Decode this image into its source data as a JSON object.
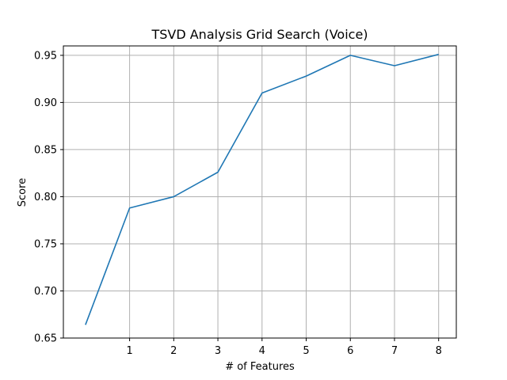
{
  "chart_data": {
    "type": "line",
    "title": "TSVD Analysis Grid Search (Voice)",
    "xlabel": "# of Features",
    "ylabel": "Score",
    "x": [
      0,
      1,
      2,
      3,
      4,
      5,
      6,
      7,
      8
    ],
    "series": [
      {
        "values": [
          0.664,
          0.788,
          0.8,
          0.826,
          0.91,
          0.928,
          0.95,
          0.939,
          0.951
        ],
        "color": "#1f77b4"
      }
    ],
    "xlim": [
      -0.5,
      8.4
    ],
    "ylim": [
      0.65,
      0.96
    ],
    "xticks": [
      1,
      2,
      3,
      4,
      5,
      6,
      7,
      8
    ],
    "xtick_labels": [
      "1",
      "2",
      "3",
      "4",
      "5",
      "6",
      "7",
      "8"
    ],
    "yticks": [
      0.65,
      0.7,
      0.75,
      0.8,
      0.85,
      0.9,
      0.95
    ],
    "ytick_labels": [
      "0.65",
      "0.70",
      "0.75",
      "0.80",
      "0.85",
      "0.90",
      "0.95"
    ],
    "grid": true,
    "grid_color": "#b0b0b0",
    "axis_color": "#000000"
  }
}
